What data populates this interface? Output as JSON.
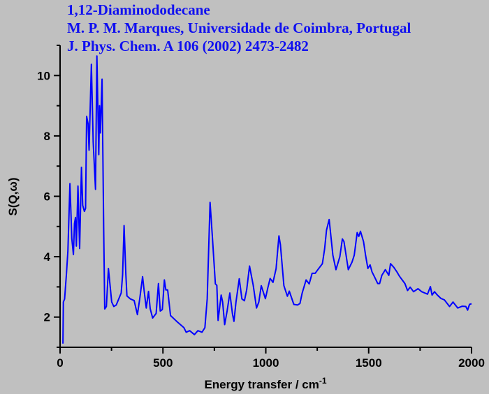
{
  "chart_data": {
    "type": "line",
    "title": [
      "1,12-Diaminododecane",
      "M. P. M. Marques, Universidade de Coimbra, Portugal",
      "J. Phys. Chem. A 106 (2002) 2473-2482"
    ],
    "xlabel": "Energy transfer / cm",
    "xlabel_superscript": "-1",
    "ylabel": "S(Q,ω)",
    "xlim": [
      0,
      2000
    ],
    "ylim": [
      1,
      11
    ],
    "xticks": [
      0,
      500,
      1000,
      1500,
      2000
    ],
    "yticks": [
      2,
      4,
      6,
      8,
      10
    ],
    "grid": false,
    "line_color": "#0000ff",
    "series": [
      {
        "x": [
          14,
          16,
          22,
          31,
          38,
          48,
          53,
          57,
          65,
          70,
          75,
          79,
          87,
          95,
          104,
          110,
          118,
          124,
          129,
          136,
          141,
          152,
          161,
          172,
          179,
          188,
          192,
          196,
          204,
          212,
          217,
          225,
          235,
          251,
          261,
          273,
          297,
          304,
          311,
          320,
          325,
          342,
          360,
          376,
          387,
          401,
          410,
          419,
          430,
          438,
          450,
          467,
          478,
          487,
          497,
          507,
          514,
          523,
          537,
          568,
          602,
          613,
          630,
          653,
          670,
          690,
          704,
          715,
          729,
          740,
          755,
          762,
          768,
          783,
          790,
          800,
          812,
          825,
          838,
          845,
          855,
          871,
          884,
          896,
          907,
          921,
          939,
          955,
          966,
          978,
          998,
          1010,
          1021,
          1035,
          1050,
          1064,
          1071,
          1088,
          1105,
          1114,
          1136,
          1154,
          1166,
          1177,
          1196,
          1211,
          1225,
          1240,
          1253,
          1275,
          1286,
          1295,
          1308,
          1326,
          1341,
          1360,
          1372,
          1380,
          1401,
          1419,
          1430,
          1444,
          1452,
          1460,
          1475,
          1485,
          1496,
          1507,
          1516,
          1527,
          1544,
          1553,
          1564,
          1581,
          1598,
          1606,
          1622,
          1637,
          1650,
          1676,
          1689,
          1702,
          1718,
          1740,
          1758,
          1786,
          1800,
          1808,
          1820,
          1834,
          1851,
          1868,
          1893,
          1910,
          1933,
          1955,
          1972,
          1981,
          1990,
          2000
        ],
        "y": [
          1.12,
          2.5,
          2.6,
          3.43,
          4.19,
          6.42,
          5.42,
          4.6,
          4.07,
          5.1,
          5.3,
          4.35,
          6.34,
          4.27,
          6.96,
          5.7,
          5.5,
          5.6,
          8.65,
          8.4,
          7.53,
          10.37,
          7.8,
          6.23,
          10.65,
          7.38,
          9.0,
          8.1,
          9.88,
          4.96,
          2.27,
          2.35,
          3.61,
          2.5,
          2.35,
          2.4,
          2.8,
          3.4,
          5.03,
          3.4,
          2.7,
          2.6,
          2.55,
          2.08,
          2.6,
          3.34,
          2.8,
          2.3,
          2.85,
          2.28,
          1.97,
          2.12,
          3.11,
          2.2,
          2.25,
          3.23,
          2.9,
          2.9,
          2.05,
          1.85,
          1.65,
          1.5,
          1.55,
          1.42,
          1.55,
          1.5,
          1.65,
          2.6,
          5.8,
          4.7,
          3.1,
          3.05,
          1.89,
          2.73,
          2.5,
          1.75,
          2.2,
          2.8,
          2.1,
          1.86,
          2.5,
          3.27,
          2.6,
          2.54,
          2.9,
          3.69,
          3.05,
          2.3,
          2.5,
          3.04,
          2.61,
          2.97,
          3.28,
          3.15,
          3.6,
          4.69,
          4.4,
          3.04,
          2.69,
          2.86,
          2.42,
          2.4,
          2.45,
          2.8,
          3.23,
          3.1,
          3.45,
          3.45,
          3.57,
          3.77,
          4.26,
          4.88,
          5.23,
          4.05,
          3.57,
          4.0,
          4.59,
          4.5,
          3.57,
          3.82,
          4.05,
          4.8,
          4.67,
          4.84,
          4.5,
          4.05,
          3.61,
          3.73,
          3.5,
          3.35,
          3.11,
          3.11,
          3.38,
          3.57,
          3.38,
          3.77,
          3.65,
          3.5,
          3.35,
          3.11,
          2.88,
          2.99,
          2.84,
          2.94,
          2.84,
          2.76,
          3.01,
          2.73,
          2.84,
          2.73,
          2.62,
          2.57,
          2.35,
          2.5,
          2.3,
          2.36,
          2.35,
          2.23,
          2.42,
          2.44
        ]
      }
    ]
  }
}
